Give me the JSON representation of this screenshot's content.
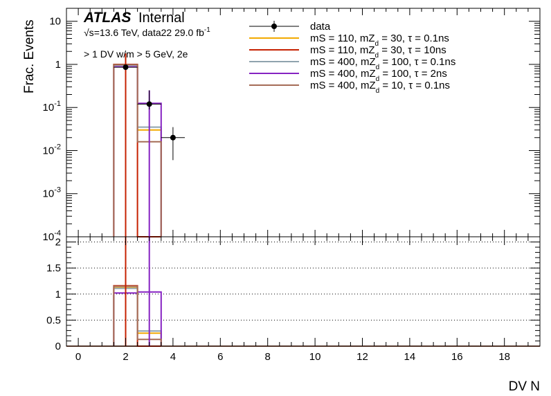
{
  "header": {
    "atlas": "ATLAS",
    "internal": "Internal",
    "energy_sqrt": "√s",
    "energy_rest": "=13.6 TeV, data22 29.0 fb",
    "energy_sup": "-1",
    "selection": "> 1 DV w/m > 5 GeV, 2e"
  },
  "legend": [
    {
      "id": "data",
      "label": "data",
      "color": "#000000",
      "marker": "point"
    },
    {
      "id": "s1",
      "pre": "mS = 110, mZ",
      "sub": "d",
      "post": " = 30, τ = 0.1ns",
      "color": "#f2a900",
      "marker": "line"
    },
    {
      "id": "s2",
      "pre": "mS = 110, mZ",
      "sub": "d",
      "post": " = 30, τ = 10ns",
      "color": "#c62000",
      "marker": "line"
    },
    {
      "id": "s3",
      "pre": "mS = 400, mZ",
      "sub": "d",
      "post": " = 100, τ = 0.1ns",
      "color": "#8fa3ad",
      "marker": "line"
    },
    {
      "id": "s4",
      "pre": "mS = 400, mZ",
      "sub": "d",
      "post": " = 100, τ = 2ns",
      "color": "#8522c2",
      "marker": "line"
    },
    {
      "id": "s5",
      "pre": "mS = 400, mZ",
      "sub": "d",
      "post": " = 10, τ = 0.1ns",
      "color": "#a56b56",
      "marker": "line"
    }
  ],
  "chart_data": {
    "type": "histogram",
    "xlabel": "DV N",
    "ylabel": "Frac. Events",
    "x_range": [
      -0.5,
      19.5
    ],
    "x_ticks": [
      0,
      2,
      4,
      6,
      8,
      10,
      12,
      14,
      16,
      18
    ],
    "top_panel": {
      "scale": "log",
      "ylim": [
        0.0001,
        20
      ],
      "y_ticks": [
        {
          "base": "10",
          "exp": "-4",
          "value": 0.0001
        },
        {
          "base": "10",
          "exp": "-3",
          "value": 0.001
        },
        {
          "base": "10",
          "exp": "-2",
          "value": 0.01
        },
        {
          "base": "10",
          "exp": "-1",
          "value": 0.1
        },
        {
          "base": "1",
          "exp": "",
          "value": 1
        },
        {
          "base": "10",
          "exp": "",
          "value": 10
        }
      ],
      "bin_edges": [
        1.5,
        2.5,
        3.5
      ],
      "series": [
        {
          "id": "s1",
          "values": [
            0.97,
            0.03
          ]
        },
        {
          "id": "s2",
          "values": [
            1.0,
            0.0
          ]
        },
        {
          "id": "s3",
          "values": [
            0.96,
            0.035
          ]
        },
        {
          "id": "s4",
          "values": [
            0.88,
            0.125
          ]
        },
        {
          "id": "s5",
          "values": [
            0.985,
            0.016
          ]
        }
      ],
      "vertical_lines": [
        {
          "id": "s2",
          "x": 2.0,
          "from": 0.0001,
          "to": 1.8
        },
        {
          "id": "s4",
          "x": 3.0,
          "from": 0.0001,
          "to": 0.25
        }
      ],
      "data_points": [
        {
          "x": 2,
          "y": 0.86,
          "xerr": 0.5,
          "yerr_lo": 0.78,
          "yerr_hi": 0.95
        },
        {
          "x": 3,
          "y": 0.12,
          "xerr": 0.5,
          "yerr_lo": 0.09,
          "yerr_hi": 0.25
        },
        {
          "x": 4,
          "y": 0.02,
          "xerr": 0.5,
          "yerr_lo": 0.006,
          "yerr_hi": 0.035
        }
      ]
    },
    "ratio_panel": {
      "ylim": [
        0,
        2.1
      ],
      "y_ticks": [
        0,
        0.5,
        1,
        1.5,
        2
      ],
      "gridlines": [
        0.5,
        1,
        1.5,
        2
      ],
      "series": [
        {
          "id": "s1",
          "values": [
            1.12,
            0.25
          ]
        },
        {
          "id": "s2",
          "values": [
            1.16,
            0.0
          ]
        },
        {
          "id": "s3",
          "values": [
            1.11,
            0.29
          ]
        },
        {
          "id": "s4",
          "values": [
            1.02,
            1.04
          ]
        },
        {
          "id": "s5",
          "values": [
            1.15,
            0.13
          ]
        }
      ],
      "vertical_lines": [
        {
          "id": "s2",
          "x": 2.0,
          "from": 0,
          "to": 2.1
        },
        {
          "id": "s4",
          "x": 3.0,
          "from": 0,
          "to": 2.1
        }
      ],
      "baseline_color": "#a56b56"
    }
  }
}
